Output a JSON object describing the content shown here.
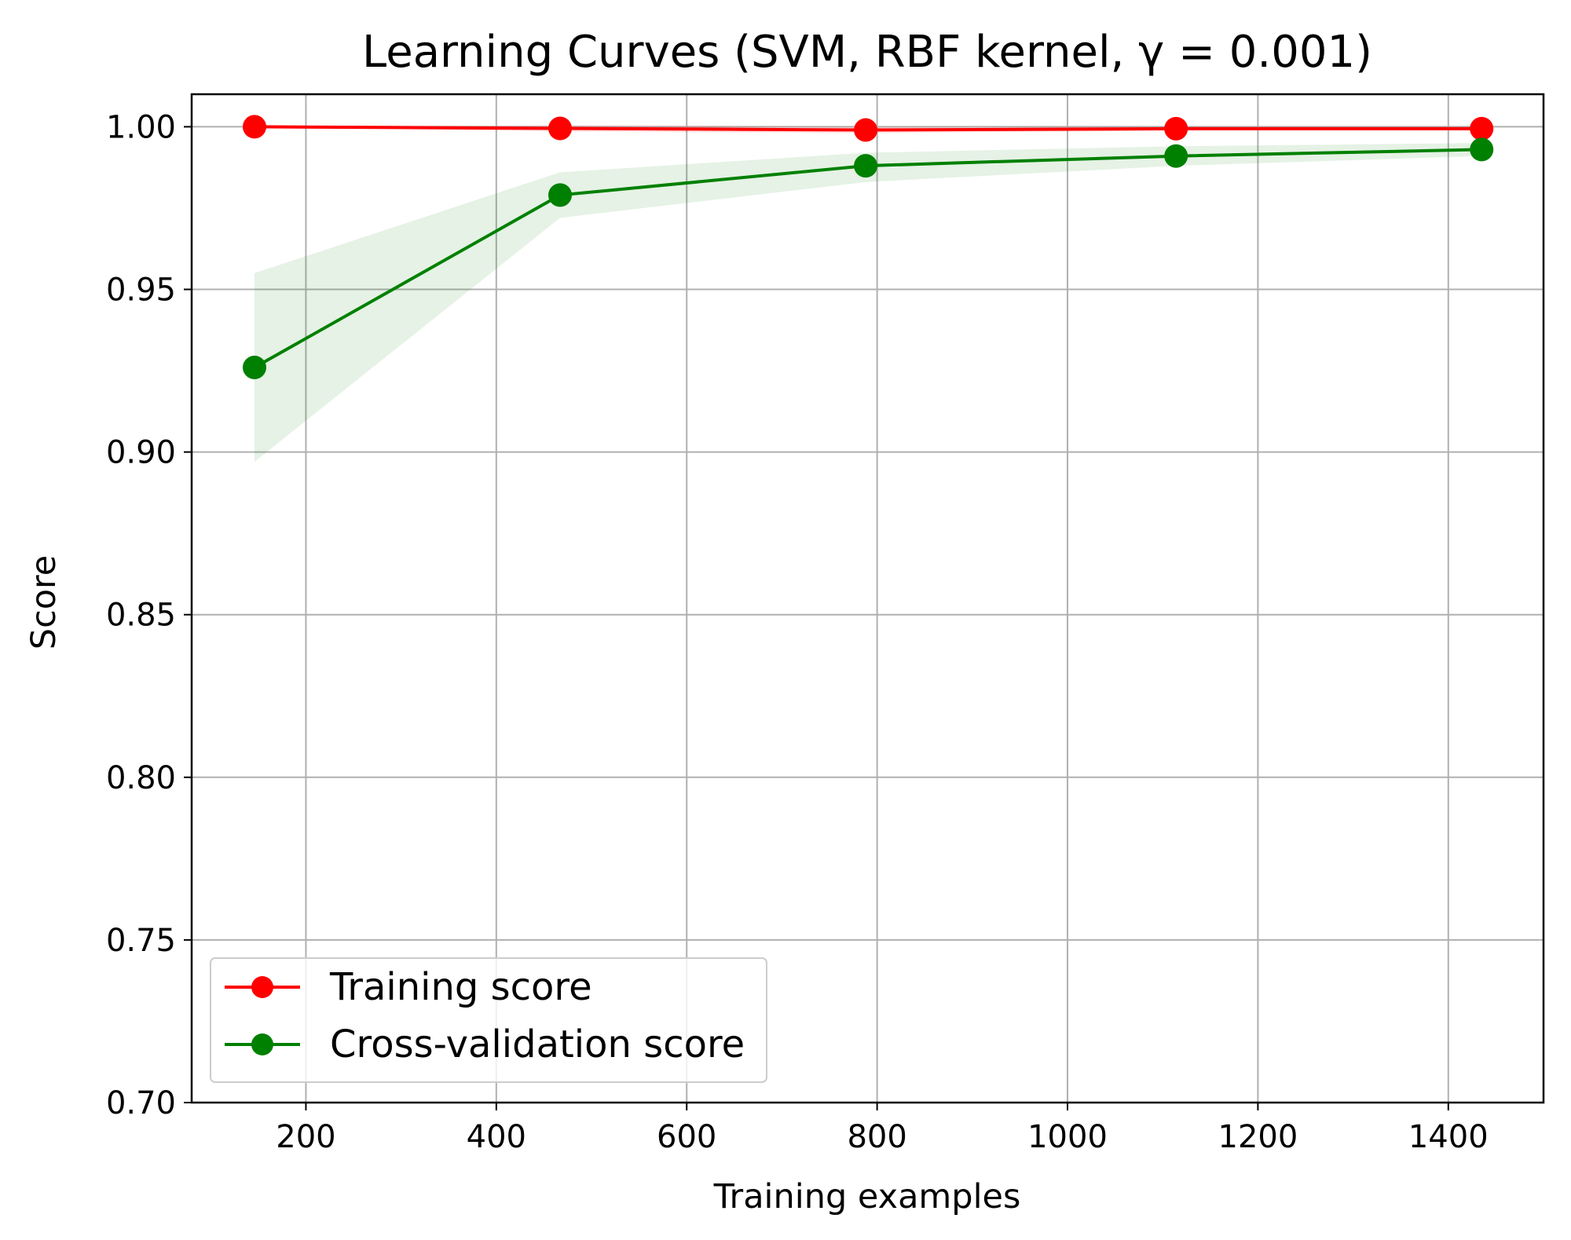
{
  "chart_data": {
    "type": "line",
    "title": "Learning Curves (SVM, RBF kernel, γ = 0.001)",
    "xlabel": "Training examples",
    "ylabel": "Score",
    "xlim": [
      80,
      1500
    ],
    "ylim": [
      0.7,
      1.01
    ],
    "xticks": [
      200,
      400,
      600,
      800,
      1000,
      1200,
      1400
    ],
    "yticks": [
      0.7,
      0.75,
      0.8,
      0.85,
      0.9,
      0.95,
      1.0
    ],
    "ytick_labels": [
      "0.70",
      "0.75",
      "0.80",
      "0.85",
      "0.90",
      "0.95",
      "1.00"
    ],
    "grid": true,
    "legend_position": "lower-left",
    "x": [
      146,
      467,
      788,
      1114,
      1435
    ],
    "series": [
      {
        "name": "Training score",
        "color": "#ff0000",
        "marker": "circle",
        "values": [
          1.0,
          0.9995,
          0.999,
          0.9994,
          0.9994
        ],
        "band_lower": [
          1.0,
          0.9985,
          0.998,
          0.9988,
          0.9988
        ],
        "band_upper": [
          1.0,
          1.0005,
          1.0,
          1.0,
          1.0
        ]
      },
      {
        "name": "Cross-validation score",
        "color": "#008000",
        "marker": "circle",
        "values": [
          0.926,
          0.979,
          0.988,
          0.991,
          0.993
        ],
        "band_lower": [
          0.897,
          0.972,
          0.983,
          0.988,
          0.991
        ],
        "band_upper": [
          0.955,
          0.986,
          0.992,
          0.994,
          0.995
        ]
      }
    ]
  }
}
